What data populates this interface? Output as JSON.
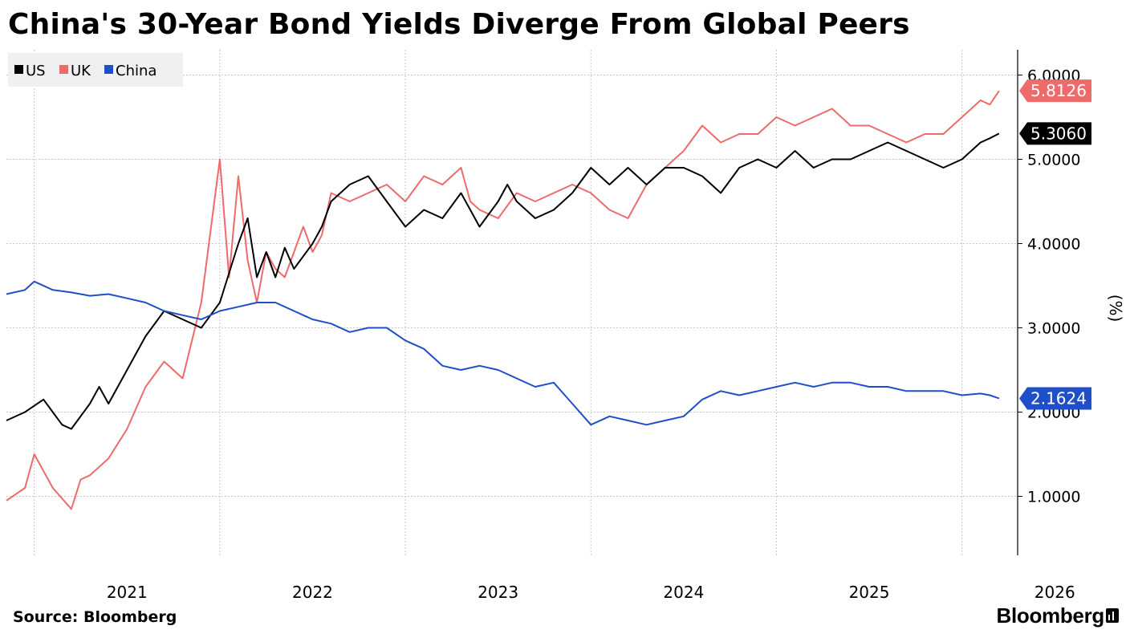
{
  "title": "China's 30-Year Bond Yields Diverge From Global Peers",
  "source": "Source: Bloomberg",
  "brand": "Bloomberg",
  "chart_data": {
    "type": "line",
    "y_unit_label": "(%)",
    "ylim": [
      0.3,
      6.3
    ],
    "y_ticks": [
      "1.0000",
      "2.0000",
      "3.0000",
      "4.0000",
      "5.0000",
      "6.0000"
    ],
    "x_range": [
      2020.85,
      2026.3
    ],
    "x_ticks": [
      "2021",
      "2022",
      "2023",
      "2024",
      "2025",
      "2026"
    ],
    "grid": true,
    "legend_position": "top-left",
    "series": [
      {
        "name": "US",
        "color": "#000000",
        "last_label": "5.3060",
        "x": [
          2020.85,
          2020.95,
          2021.05,
          2021.15,
          2021.2,
          2021.3,
          2021.35,
          2021.4,
          2021.5,
          2021.6,
          2021.7,
          2021.8,
          2021.9,
          2022.0,
          2022.1,
          2022.15,
          2022.2,
          2022.25,
          2022.3,
          2022.35,
          2022.4,
          2022.5,
          2022.55,
          2022.6,
          2022.7,
          2022.8,
          2022.9,
          2023.0,
          2023.1,
          2023.2,
          2023.3,
          2023.35,
          2023.4,
          2023.5,
          2023.55,
          2023.6,
          2023.7,
          2023.8,
          2023.9,
          2024.0,
          2024.1,
          2024.15,
          2024.2,
          2024.3,
          2024.4,
          2024.5,
          2024.6,
          2024.7,
          2024.8,
          2024.9,
          2025.0,
          2025.1,
          2025.2,
          2025.3,
          2025.4,
          2025.5,
          2025.6,
          2025.7,
          2025.8,
          2025.9,
          2026.0,
          2026.1,
          2026.15,
          2026.2
        ],
        "y": [
          1.9,
          2.0,
          2.15,
          1.85,
          1.8,
          2.1,
          2.3,
          2.1,
          2.5,
          2.9,
          3.2,
          3.1,
          3.0,
          3.3,
          4.0,
          4.3,
          3.6,
          3.9,
          3.6,
          3.95,
          3.7,
          4.0,
          4.2,
          4.5,
          4.7,
          4.8,
          4.5,
          4.2,
          4.4,
          4.3,
          4.6,
          4.4,
          4.2,
          4.5,
          4.7,
          4.5,
          4.3,
          4.4,
          4.6,
          4.9,
          4.7,
          4.8,
          4.9,
          4.7,
          4.9,
          4.9,
          4.8,
          4.6,
          4.9,
          5.0,
          4.9,
          5.1,
          4.9,
          5.0,
          5.0,
          5.1,
          5.2,
          5.1,
          5.0,
          4.9,
          5.0,
          5.2,
          5.25,
          5.306
        ]
      },
      {
        "name": "UK",
        "color": "#ee6b6b",
        "last_label": "5.8126",
        "x": [
          2020.85,
          2020.95,
          2021.0,
          2021.1,
          2021.2,
          2021.25,
          2021.3,
          2021.4,
          2021.5,
          2021.6,
          2021.7,
          2021.8,
          2021.9,
          2022.0,
          2022.05,
          2022.1,
          2022.15,
          2022.2,
          2022.25,
          2022.3,
          2022.35,
          2022.45,
          2022.5,
          2022.55,
          2022.6,
          2022.7,
          2022.8,
          2022.9,
          2023.0,
          2023.1,
          2023.2,
          2023.3,
          2023.35,
          2023.4,
          2023.5,
          2023.6,
          2023.7,
          2023.8,
          2023.9,
          2024.0,
          2024.1,
          2024.2,
          2024.3,
          2024.35,
          2024.4,
          2024.5,
          2024.6,
          2024.7,
          2024.8,
          2024.9,
          2025.0,
          2025.1,
          2025.2,
          2025.3,
          2025.4,
          2025.5,
          2025.6,
          2025.7,
          2025.8,
          2025.9,
          2026.0,
          2026.1,
          2026.15,
          2026.2
        ],
        "y": [
          0.95,
          1.1,
          1.5,
          1.1,
          0.85,
          1.2,
          1.25,
          1.45,
          1.8,
          2.3,
          2.6,
          2.4,
          3.3,
          5.0,
          3.6,
          4.8,
          3.8,
          3.3,
          3.9,
          3.7,
          3.6,
          4.2,
          3.9,
          4.1,
          4.6,
          4.5,
          4.6,
          4.7,
          4.5,
          4.8,
          4.7,
          4.9,
          4.5,
          4.4,
          4.3,
          4.6,
          4.5,
          4.6,
          4.7,
          4.6,
          4.4,
          4.3,
          4.7,
          4.8,
          4.9,
          5.1,
          5.4,
          5.2,
          5.3,
          5.3,
          5.5,
          5.4,
          5.5,
          5.6,
          5.4,
          5.4,
          5.3,
          5.2,
          5.3,
          5.3,
          5.5,
          5.7,
          5.65,
          5.8126
        ]
      },
      {
        "name": "China",
        "color": "#1f4fc8",
        "last_label": "2.1624",
        "x": [
          2020.85,
          2020.95,
          2021.0,
          2021.1,
          2021.2,
          2021.3,
          2021.4,
          2021.5,
          2021.6,
          2021.7,
          2021.8,
          2021.9,
          2022.0,
          2022.1,
          2022.2,
          2022.3,
          2022.4,
          2022.5,
          2022.6,
          2022.7,
          2022.8,
          2022.9,
          2023.0,
          2023.1,
          2023.2,
          2023.3,
          2023.4,
          2023.5,
          2023.6,
          2023.7,
          2023.8,
          2023.9,
          2024.0,
          2024.1,
          2024.2,
          2024.3,
          2024.4,
          2024.5,
          2024.6,
          2024.7,
          2024.8,
          2024.9,
          2025.0,
          2025.1,
          2025.2,
          2025.3,
          2025.4,
          2025.5,
          2025.6,
          2025.7,
          2025.8,
          2025.9,
          2026.0,
          2026.1,
          2026.15,
          2026.2
        ],
        "y": [
          3.4,
          3.45,
          3.55,
          3.45,
          3.42,
          3.38,
          3.4,
          3.35,
          3.3,
          3.2,
          3.15,
          3.1,
          3.2,
          3.25,
          3.3,
          3.3,
          3.2,
          3.1,
          3.05,
          2.95,
          3.0,
          3.0,
          2.85,
          2.75,
          2.55,
          2.5,
          2.55,
          2.5,
          2.4,
          2.3,
          2.35,
          2.1,
          1.85,
          1.95,
          1.9,
          1.85,
          1.9,
          1.95,
          2.15,
          2.25,
          2.2,
          2.25,
          2.3,
          2.35,
          2.3,
          2.35,
          2.35,
          2.3,
          2.3,
          2.25,
          2.25,
          2.25,
          2.2,
          2.22,
          2.2,
          2.1624
        ]
      }
    ]
  }
}
